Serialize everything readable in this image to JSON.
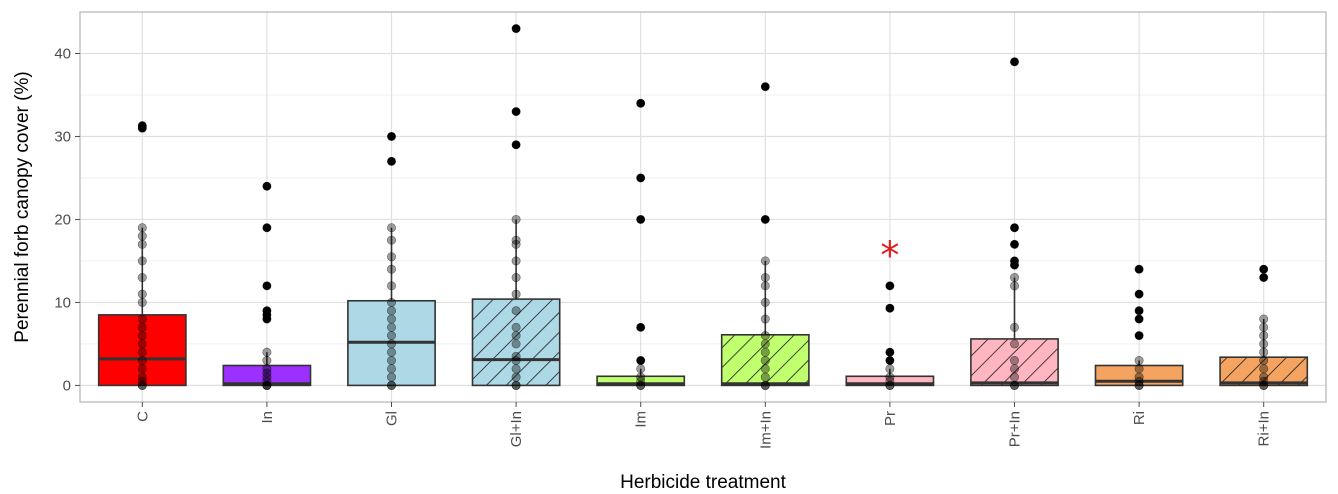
{
  "chart_data": {
    "type": "boxplot",
    "xlabel": "Herbicide treatment",
    "ylabel": "Perennial forb canopy cover (%)",
    "ylim": [
      -2,
      45
    ],
    "yticks": [
      0,
      10,
      20,
      30,
      40
    ],
    "grid": true,
    "legend": "none",
    "significance_marker": {
      "category": "Pr",
      "symbol": "*",
      "y": 16,
      "color": "#e41a1c"
    },
    "categories": [
      {
        "name": "C",
        "color": "#ff0000",
        "hatched": false,
        "q1": 0,
        "median": 3.2,
        "q3": 8.5,
        "whisker_low": 0,
        "whisker_high": 19,
        "points": [
          0,
          0,
          0.5,
          1,
          2,
          3,
          4,
          5,
          6,
          7,
          8,
          10,
          11,
          13,
          15,
          17,
          18,
          19,
          31,
          31.3
        ]
      },
      {
        "name": "In",
        "color": "#9b30ff",
        "hatched": false,
        "q1": 0,
        "median": 0.2,
        "q3": 2.4,
        "whisker_low": 0,
        "whisker_high": 4,
        "points": [
          0,
          0,
          0,
          0.5,
          1,
          1.5,
          2,
          3,
          4,
          8,
          8.5,
          9,
          12,
          19,
          24
        ]
      },
      {
        "name": "Gl",
        "color": "#add8e6",
        "hatched": false,
        "q1": 0,
        "median": 5.2,
        "q3": 10.2,
        "whisker_low": 0,
        "whisker_high": 19,
        "points": [
          0,
          0,
          1,
          2,
          3,
          4,
          5,
          6,
          7,
          8,
          9,
          10,
          12,
          14,
          15.5,
          17.5,
          19,
          27,
          30
        ]
      },
      {
        "name": "Gl+In",
        "color": "#add8e6",
        "hatched": true,
        "q1": 0,
        "median": 3.1,
        "q3": 10.4,
        "whisker_low": 0,
        "whisker_high": 20,
        "points": [
          0,
          0,
          1,
          2,
          3,
          3.5,
          5,
          6,
          7,
          9,
          11,
          13,
          15,
          17,
          17.5,
          20,
          29,
          33,
          43
        ]
      },
      {
        "name": "Im",
        "color": "#c0ff6e",
        "hatched": false,
        "q1": 0,
        "median": 0.2,
        "q3": 1.1,
        "whisker_low": 0,
        "whisker_high": 2,
        "points": [
          0,
          0,
          0.5,
          1,
          2,
          3,
          7,
          20,
          25,
          34
        ]
      },
      {
        "name": "Im+In",
        "color": "#c0ff6e",
        "hatched": true,
        "q1": 0,
        "median": 0.2,
        "q3": 6.1,
        "whisker_low": 0,
        "whisker_high": 15,
        "points": [
          0,
          0,
          1,
          2,
          3,
          4,
          5,
          6,
          8,
          10,
          12,
          13,
          15,
          20,
          36
        ]
      },
      {
        "name": "Pr",
        "color": "#ffb6c1",
        "hatched": false,
        "q1": 0,
        "median": 0.2,
        "q3": 1.1,
        "whisker_low": 0,
        "whisker_high": 2,
        "points": [
          0,
          0,
          0.5,
          1,
          2,
          3,
          4,
          9.3,
          12
        ]
      },
      {
        "name": "Pr+In",
        "color": "#ffb6c1",
        "hatched": true,
        "q1": 0,
        "median": 0.3,
        "q3": 5.6,
        "whisker_low": 0,
        "whisker_high": 13,
        "points": [
          0,
          0,
          1,
          2,
          3,
          5,
          7,
          12,
          13,
          14.5,
          15,
          17,
          19,
          39
        ]
      },
      {
        "name": "Ri",
        "color": "#f4a460",
        "hatched": false,
        "q1": 0,
        "median": 0.5,
        "q3": 2.4,
        "whisker_low": 0,
        "whisker_high": 3,
        "points": [
          0,
          0,
          0.5,
          1,
          2,
          3,
          6,
          8,
          9,
          11,
          14
        ]
      },
      {
        "name": "Ri+In",
        "color": "#f4a460",
        "hatched": true,
        "q1": 0,
        "median": 0.3,
        "q3": 3.4,
        "whisker_low": 0,
        "whisker_high": 8,
        "points": [
          0,
          0,
          0.5,
          1,
          2,
          3,
          4,
          5,
          6,
          7,
          8,
          13,
          14
        ]
      }
    ]
  }
}
